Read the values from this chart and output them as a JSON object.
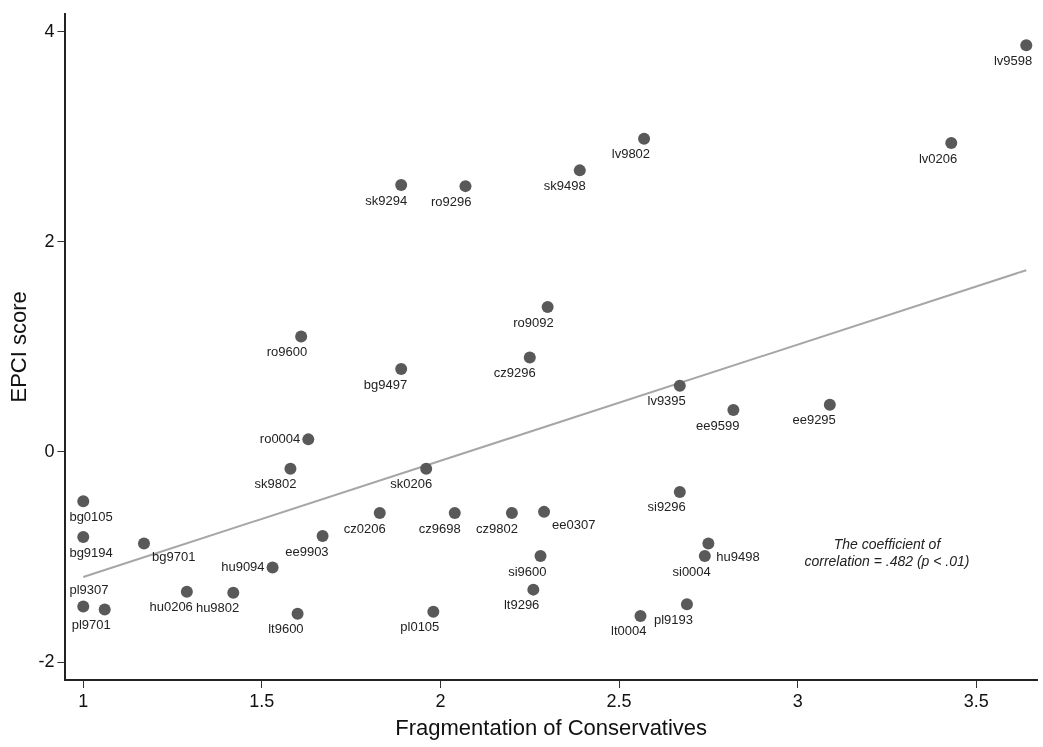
{
  "chart_data": {
    "type": "scatter",
    "xlabel": "Fragmentation of Conservatives",
    "ylabel": "EPCI score",
    "xlim": [
      0.95,
      3.67
    ],
    "xticks": [
      1,
      1.5,
      2,
      2.5,
      3,
      3.5
    ],
    "ylim": [
      -2.17,
      4.17
    ],
    "yticks": [
      -2,
      0,
      2,
      4
    ],
    "grid": false,
    "legend": false,
    "marker": "circle",
    "annotations": [
      "The coefficient of correlation = .482 (p < .01)"
    ],
    "series": [
      {
        "type": "scatter",
        "color": "#595959",
        "x": [
          3.64,
          3.43,
          2.57,
          2.39,
          2.07,
          1.89,
          2.3,
          1.61,
          2.25,
          1.89,
          2.67,
          2.82,
          3.09,
          1.63,
          1.58,
          1.96,
          1.0,
          1.0,
          1.17,
          1.83,
          2.04,
          2.2,
          2.29,
          1.67,
          1.53,
          1.42,
          1.29,
          1.06,
          1.0,
          1.6,
          1.98,
          2.26,
          2.28,
          2.67,
          2.75,
          2.74,
          2.69,
          2.56
        ],
        "values": [
          3.87,
          2.94,
          2.98,
          2.68,
          2.53,
          2.54,
          1.38,
          1.1,
          0.9,
          0.79,
          0.63,
          0.4,
          0.45,
          0.12,
          -0.16,
          -0.16,
          -0.47,
          -0.81,
          -0.87,
          -0.58,
          -0.58,
          -0.58,
          -0.57,
          -0.8,
          -1.1,
          -1.34,
          -1.33,
          -1.5,
          -1.47,
          -1.54,
          -1.52,
          -1.31,
          -0.99,
          -0.38,
          -0.87,
          -0.99,
          -1.45,
          -1.56
        ],
        "value_labels": [
          "lv9598",
          "lv0206",
          "lv9802",
          "sk9498",
          "ro9296",
          "sk9294",
          "ro9092",
          "ro9600",
          "cz9296",
          "bg9497",
          "lv9395",
          "ee9599",
          "ee9295",
          "ro0004",
          "sk9802",
          "sk0206",
          "bg0105",
          "bg9194",
          "bg9701",
          "cz0206",
          "cz9698",
          "cz9802",
          "ee0307",
          "ee9903",
          "hu9094",
          "hu9802",
          "hu0206",
          "pl9701",
          "pl9307",
          "lt9600",
          "pl0105",
          "lt9296",
          "si9600",
          "si9296",
          "hu9498",
          "si0004",
          "pl9193",
          "lt0004"
        ]
      },
      {
        "type": "line",
        "color": "#a6a6a6",
        "x": [
          1.0,
          3.64
        ],
        "values": [
          -1.19,
          1.73
        ],
        "marker": "none"
      }
    ]
  }
}
